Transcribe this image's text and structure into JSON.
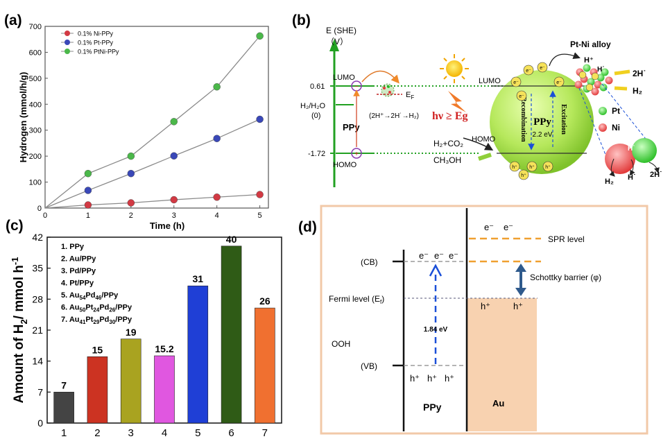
{
  "panels": {
    "a": "(a)",
    "b": "(b)",
    "c": "(c)",
    "d": "(d)"
  },
  "chart_data": [
    {
      "panel": "(a)",
      "type": "line",
      "xlabel": "Time (h)",
      "ylabel": "Hydrogen (mmol/h/g)",
      "xlim": [
        0,
        5.2
      ],
      "ylim": [
        0,
        700
      ],
      "xticks": [
        "0",
        "1",
        "2",
        "3",
        "4",
        "5"
      ],
      "yticks": [
        "0",
        "100",
        "200",
        "300",
        "400",
        "500",
        "600",
        "700"
      ],
      "x": [
        1,
        2,
        3,
        4,
        5
      ],
      "legend_position": "top-left",
      "series": [
        {
          "name": "0.1% Ni-PPy",
          "color": "#d23a44",
          "values": [
            12,
            20,
            32,
            42,
            52
          ]
        },
        {
          "name": "0.1% Pt-PPy",
          "color": "#3a48b8",
          "values": [
            68,
            133,
            201,
            268,
            342
          ]
        },
        {
          "name": "0.1% PtNi-PPy",
          "color": "#4bb84a",
          "values": [
            133,
            200,
            333,
            467,
            663
          ]
        }
      ],
      "grid": false
    },
    {
      "panel": "(c)",
      "type": "bar",
      "ylabel_parts": [
        "Amount of H",
        "2",
        "/ mmol h",
        "-1"
      ],
      "categories": [
        "1",
        "2",
        "3",
        "4",
        "5",
        "6",
        "7"
      ],
      "values": [
        7,
        15,
        19,
        15.2,
        31,
        40,
        26
      ],
      "value_labels": [
        "7",
        "15",
        "19",
        "15.2",
        "31",
        "40",
        "26"
      ],
      "ylim": [
        0,
        42
      ],
      "yticks": [
        "0",
        "7",
        "14",
        "21",
        "28",
        "35",
        "42"
      ],
      "grid": false,
      "legend": [
        [
          {
            "t": "1. PPy"
          }
        ],
        [
          {
            "t": "2. Au/PPy"
          }
        ],
        [
          {
            "t": "3. Pd/PPy"
          }
        ],
        [
          {
            "t": "4. Pt/PPy"
          }
        ],
        [
          {
            "t": "5. Au"
          },
          {
            "t": "54",
            "sub": true
          },
          {
            "t": "Pd"
          },
          {
            "t": "46",
            "sub": true
          },
          {
            "t": "/PPy"
          }
        ],
        [
          {
            "t": "6. Au"
          },
          {
            "t": "50",
            "sub": true
          },
          {
            "t": "Pt"
          },
          {
            "t": "24",
            "sub": true
          },
          {
            "t": "Pd"
          },
          {
            "t": "26",
            "sub": true
          },
          {
            "t": "/PPy"
          }
        ],
        [
          {
            "t": "7. Au"
          },
          {
            "t": "41",
            "sub": true
          },
          {
            "t": "Pt"
          },
          {
            "t": "29",
            "sub": true
          },
          {
            "t": "Pd"
          },
          {
            "t": "30",
            "sub": true
          },
          {
            "t": "/PPy"
          }
        ]
      ],
      "colors": [
        "#444444",
        "#cc3322",
        "#a9a320",
        "#e057e0",
        "#1f3fd6",
        "#2f5b16",
        "#f07030"
      ]
    }
  ],
  "diagram_b": {
    "axis_title": "E (SHE)",
    "axis_unit": "（V）",
    "level_lumo_value": "0.61",
    "level_h2_label": "H₂/H₂O",
    "level_h2_value": "(0)",
    "level_homo_value": "-1.72",
    "material_label": "PPy",
    "lumo_label": "LUMO",
    "homo_label": "HOMO",
    "ef_label": "E",
    "ef_sub": "F",
    "reaction_text": "(2H⁺→2H˙→H₂)",
    "hv_label": "hν ≥ Eg",
    "sphere_lumo": "LUMO",
    "sphere_homo": "HOMO",
    "sphere_center": "PPy",
    "sphere_gap": "2.2 eV",
    "recombination": "Recombination",
    "excitation": "Excitation",
    "h2co2": "H₂+CO₂",
    "ch3oh": "CH₃OH",
    "alloy_label": "Pt-Ni alloy",
    "h_plus": "H⁺",
    "h_dot": "H˙",
    "two_h_dot": "2H˙",
    "h2": "H₂",
    "pt_label": "Pt",
    "ni_label": "Ni",
    "e_symbol": "e⁻",
    "h_symbol": "h⁺"
  },
  "diagram_d": {
    "e_minus": "e⁻",
    "h_plus": "h⁺",
    "cb_label": "(CB)",
    "vb_label": "(VB)",
    "fermi_label": "Fermi level (E",
    "fermi_sub": "f",
    "fermi_close": ")",
    "ooh_label": "OOH",
    "gap_label": "1.84 eV",
    "spr_label": "SPR level",
    "schottky_label": "Schottky barrier (φ)",
    "ppy_label": "PPy",
    "au_label": "Au"
  }
}
